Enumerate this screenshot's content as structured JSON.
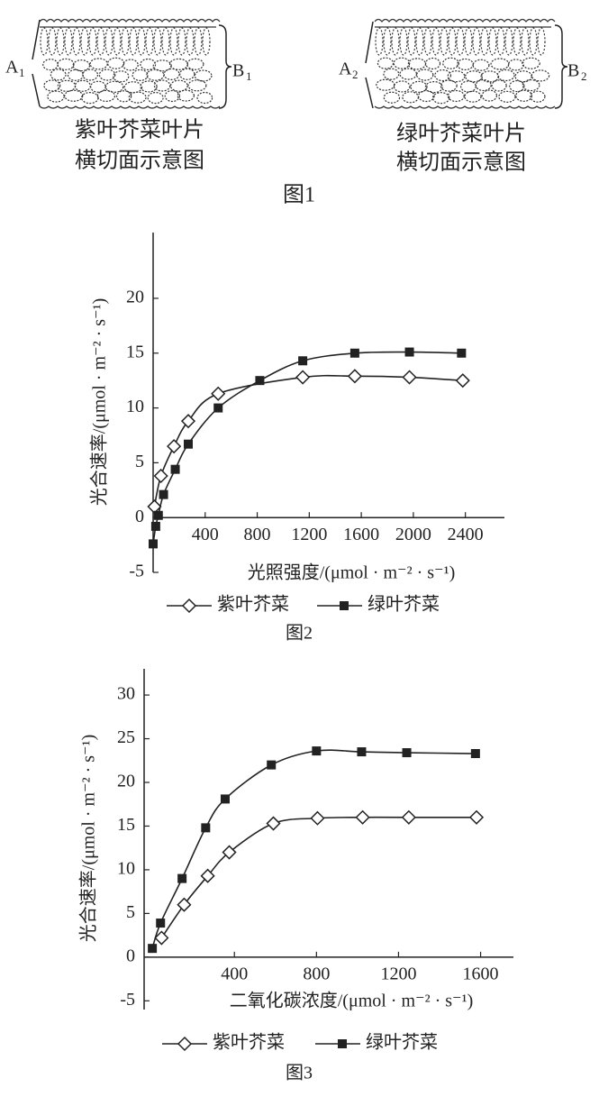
{
  "figure1": {
    "panels": [
      {
        "a": "A",
        "a_sub": "1",
        "b": "B",
        "b_sub": "1",
        "caption": [
          "紫叶芥菜叶片",
          "横切面示意图"
        ]
      },
      {
        "a": "A",
        "a_sub": "2",
        "b": "B",
        "b_sub": "2",
        "caption": [
          "绿叶芥菜叶片",
          "横切面示意图"
        ]
      }
    ],
    "caption": "图1"
  },
  "chart_data": [
    {
      "type": "line",
      "caption": "图2",
      "x_label": "光照强度/(μmol · m⁻² · s⁻¹)",
      "y_label": "光合速率/(μmol · m⁻² · s⁻¹)",
      "xlim": [
        0,
        2700
      ],
      "ylim": [
        -5,
        26
      ],
      "xticks": [
        400,
        800,
        1200,
        1600,
        2000,
        2400
      ],
      "yticks": [
        -5,
        0,
        5,
        10,
        15,
        20
      ],
      "series": [
        {
          "name": "紫叶芥菜",
          "marker": "diamond",
          "color": "#222222",
          "x": [
            10,
            60,
            160,
            270,
            500,
            1150,
            1550,
            1970,
            2380
          ],
          "values": [
            1.0,
            3.8,
            6.5,
            8.8,
            11.3,
            12.8,
            12.9,
            12.8,
            12.5
          ]
        },
        {
          "name": "绿叶芥菜",
          "marker": "square",
          "color": "#222222",
          "x": [
            0,
            20,
            40,
            80,
            170,
            270,
            500,
            820,
            1150,
            1550,
            1970,
            2370
          ],
          "values": [
            -2.4,
            -0.8,
            0.2,
            2.1,
            4.4,
            6.7,
            10.0,
            12.5,
            14.3,
            15.0,
            15.1,
            15.0
          ]
        }
      ]
    },
    {
      "type": "line",
      "caption": "图3",
      "x_label": "二氧化碳浓度/(μmol · m⁻² · s⁻¹)",
      "y_label": "光合速率/(μmol · m⁻² · s⁻¹)",
      "xlim": [
        -40,
        1760
      ],
      "ylim": [
        -6,
        33
      ],
      "xticks": [
        400,
        800,
        1200,
        1600
      ],
      "yticks": [
        -5,
        0,
        5,
        10,
        15,
        20,
        25,
        30
      ],
      "series": [
        {
          "name": "紫叶芥菜",
          "marker": "diamond",
          "color": "#222222",
          "x": [
            45,
            155,
            270,
            375,
            590,
            805,
            1025,
            1250,
            1580
          ],
          "values": [
            2.2,
            6.0,
            9.3,
            12.0,
            15.3,
            15.9,
            16.0,
            16.0,
            16.0
          ]
        },
        {
          "name": "绿叶芥菜",
          "marker": "square",
          "color": "#222222",
          "x": [
            0,
            40,
            145,
            260,
            355,
            580,
            800,
            1020,
            1240,
            1575
          ],
          "values": [
            1.0,
            3.9,
            9.0,
            14.8,
            18.1,
            22.0,
            23.6,
            23.5,
            23.4,
            23.3
          ]
        }
      ]
    }
  ]
}
